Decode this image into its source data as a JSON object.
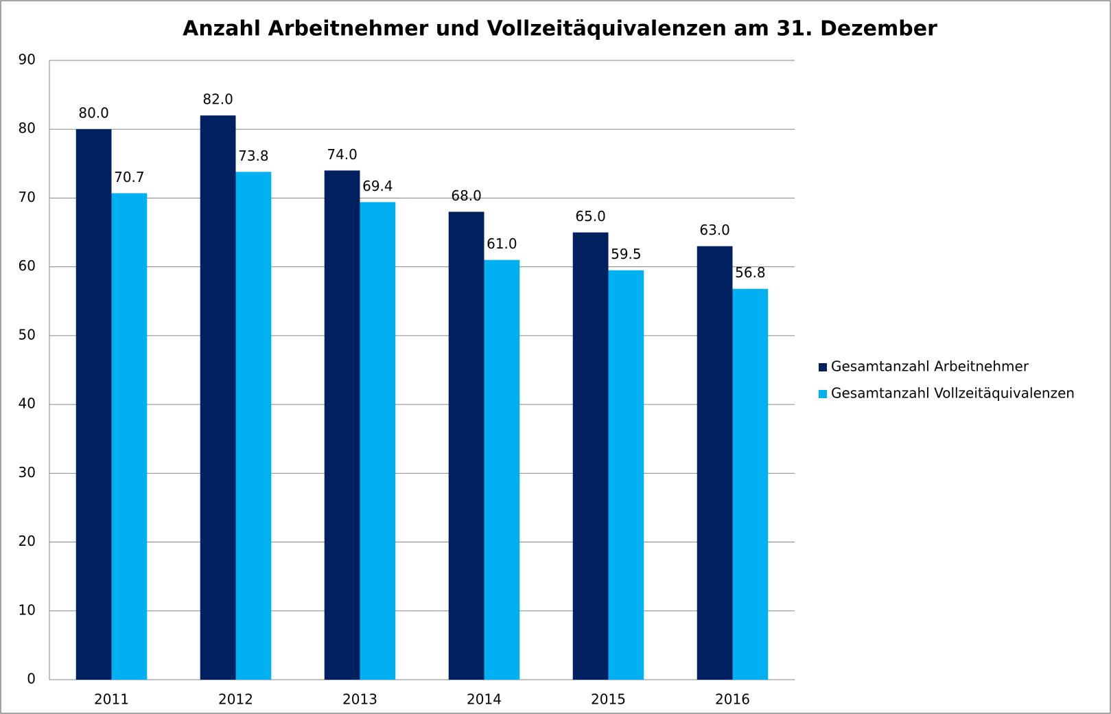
{
  "chart_data": {
    "type": "bar",
    "title": "Anzahl Arbeitnehmer und Vollzeitäquivalenzen am 31. Dezember",
    "categories": [
      "2011",
      "2012",
      "2013",
      "2014",
      "2015",
      "2016"
    ],
    "series": [
      {
        "name": "Gesamtanzahl Arbeitnehmer",
        "color": "#002060",
        "values": [
          80,
          82,
          74,
          68,
          65,
          63
        ],
        "value_labels": [
          "80.0",
          "82.0",
          "74.0",
          "68.0",
          "65.0",
          "63.0"
        ]
      },
      {
        "name": "Gesamtanzahl Vollzeitäquivalenzen",
        "color": "#00b0f0",
        "values": [
          70.7,
          73.8,
          69.4,
          61,
          59.5,
          56.8
        ],
        "value_labels": [
          "70.7",
          "73.8",
          "69.4",
          "61.0",
          "59.5",
          "56.8"
        ]
      }
    ],
    "ylim": [
      0,
      90
    ],
    "yticks": [
      0,
      10,
      20,
      30,
      40,
      50,
      60,
      70,
      80,
      90
    ],
    "grid": true,
    "legend": "right"
  }
}
